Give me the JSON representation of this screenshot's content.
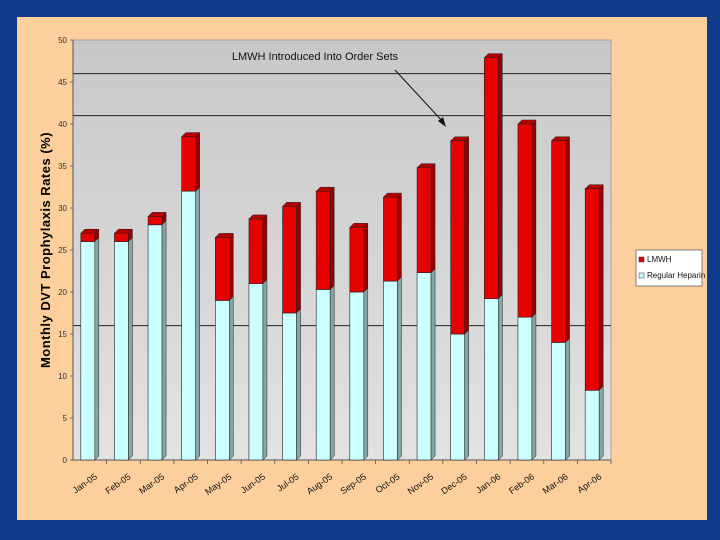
{
  "chart_data": {
    "type": "bar",
    "stacked": true,
    "ylabel": "Monthly DVT Prophylaxis Rates (%)",
    "xlabel": "",
    "ylim": [
      0,
      50
    ],
    "yticks": [
      "0",
      "5",
      "10",
      "15",
      "20",
      "25",
      "30",
      "35",
      "40",
      "45",
      "50"
    ],
    "categories": [
      "Jan-05",
      "Feb-05",
      "Mar-05",
      "Apr-05",
      "May-05",
      "Jun-05",
      "Jul-05",
      "Aug-05",
      "Sep-05",
      "Oct-05",
      "Nov-05",
      "Dec-05",
      "Jan-06",
      "Feb-06",
      "Mar-06",
      "Apr-06"
    ],
    "series": [
      {
        "name": "Regular Heparin",
        "color": "#ccffff",
        "values": [
          26,
          26,
          28,
          32,
          19,
          21,
          17.5,
          20.3,
          20,
          21.3,
          22.3,
          15,
          19.2,
          17,
          14,
          8.3
        ]
      },
      {
        "name": "LMWH",
        "color": "#e60000",
        "values": [
          1,
          1,
          1,
          6.5,
          7.5,
          7.7,
          12.7,
          11.7,
          7.7,
          10,
          12.5,
          23,
          28.7,
          23,
          24,
          24
        ]
      }
    ],
    "legend": {
      "position": "right",
      "entries": [
        "LMWH",
        "Regular Heparin"
      ]
    },
    "reference_lines": [
      16,
      41,
      46
    ],
    "annotation": {
      "text": "LMWH Introduced Into Order Sets"
    },
    "grid": false
  },
  "colors": {
    "slide_bg": "#0d3a8a",
    "panel_bg": "#fccf9c",
    "plot_bg": "#cccccc"
  }
}
